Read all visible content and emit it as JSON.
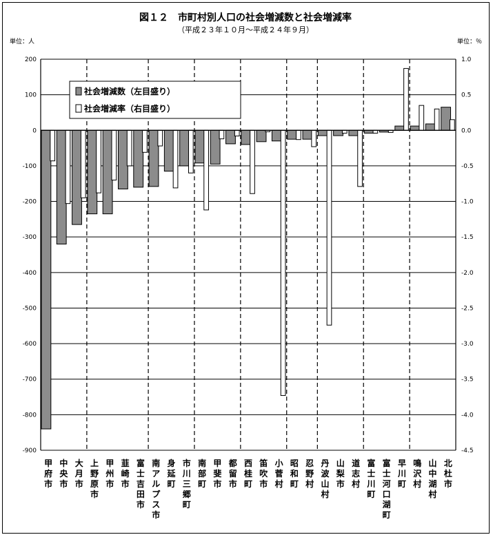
{
  "chart_data": {
    "type": "bar",
    "title": "図１２　市町村別人口の社会増減数と社会増減率",
    "subtitle": "（平成２３年１０月～平成２４年９月）",
    "left_unit": "単位：人",
    "right_unit": "単位：％",
    "left_axis": {
      "min": -900,
      "max": 200,
      "step": 100,
      "ticks": [
        "200",
        "100",
        "0",
        "-100",
        "-200",
        "-300",
        "-400",
        "-500",
        "-600",
        "-700",
        "-800",
        "-900"
      ]
    },
    "right_axis": {
      "min": -4.5,
      "max": 1.0,
      "step": 0.5,
      "ticks": [
        "1.0",
        "0.5",
        "0.0",
        "-0.5",
        "-1.0",
        "-1.5",
        "-2.0",
        "-2.5",
        "-3.0",
        "-3.5",
        "-4.0",
        "-4.5"
      ]
    },
    "legend": {
      "placement": "top-left",
      "items": [
        "社会増減数（左目盛り）",
        "社会増減率（右目盛り）"
      ]
    },
    "categories": [
      "甲府市",
      "中央市",
      "大月市",
      "上野原市",
      "甲州市",
      "韮崎市",
      "富士吉田市",
      "南アルプス市",
      "身延町",
      "市川三郷町",
      "南部町",
      "甲斐市",
      "都留市",
      "西桂町",
      "笛吹市",
      "小菅村",
      "昭和町",
      "忍野村",
      "丹波山村",
      "山梨市",
      "道志村",
      "富士川町",
      "富士河口湖町",
      "早川町",
      "鳴沢村",
      "山中湖村",
      "北杜市"
    ],
    "series": [
      {
        "name": "社会増減数（左目盛り）",
        "values": [
          -840,
          -320,
          -265,
          -235,
          -235,
          -165,
          -160,
          -158,
          -115,
          -100,
          -92,
          -95,
          -38,
          -40,
          -32,
          -30,
          -25,
          -25,
          -15,
          -15,
          -15,
          -8,
          -5,
          12,
          12,
          18,
          65
        ]
      },
      {
        "name": "社会増減率（右目盛り）",
        "values": [
          -0.43,
          -1.03,
          -0.95,
          -0.88,
          -0.7,
          -0.5,
          -0.31,
          -0.22,
          -0.81,
          -0.6,
          -1.12,
          -0.12,
          -0.08,
          -0.89,
          -0.02,
          -3.73,
          -0.13,
          -0.23,
          -2.74,
          -0.04,
          -0.79,
          -0.04,
          -0.03,
          0.87,
          0.35,
          0.3,
          0.15
        ]
      }
    ],
    "group_dividers_after": [
      2,
      6,
      9,
      12,
      15,
      17,
      20,
      23
    ],
    "colors": {
      "count_bar": "#8c8c8c",
      "rate_bar": "#ffffff",
      "stroke": "#000000"
    }
  }
}
